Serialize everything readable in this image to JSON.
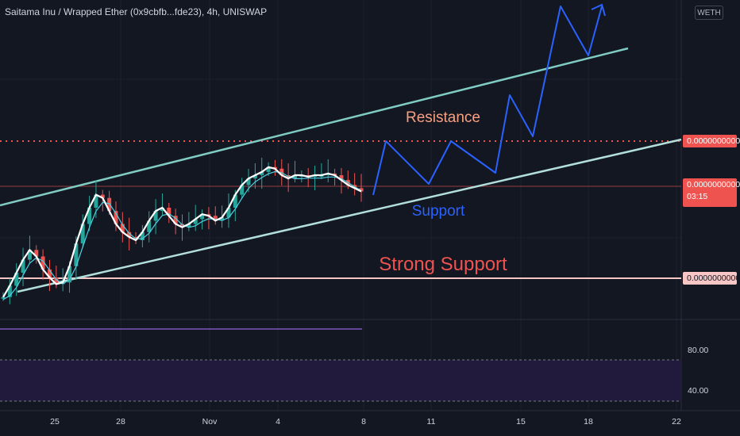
{
  "header": {
    "title": "Saitama Inu / Wrapped Ether (0x9cbfb...fde23), 4h, UNISWAP",
    "quote_badge": "WETH"
  },
  "price_axis": {
    "resistance_label": "0.0000000000",
    "current_label": "0.0000000000",
    "countdown": "03:15",
    "strong_support_label": "0.0000000000"
  },
  "rsi_axis": {
    "upper": "80.00",
    "lower": "40.00"
  },
  "time_axis": {
    "ticks": [
      "25",
      "28",
      "Nov",
      "4",
      "8",
      "11",
      "15",
      "18",
      "22"
    ]
  },
  "annotations": {
    "resistance": "Resistance",
    "support": "Support",
    "strong_support": "Strong Support"
  },
  "colors": {
    "background": "#131722",
    "up_candle": "#26a69a",
    "down_candle": "#ef5350",
    "channel_upper": "#80cbc4",
    "channel_lower": "#b2dfdb",
    "resistance_line": "#ef5350",
    "strong_support_line": "#f7c6c5",
    "projection": "#2962ff",
    "ma_fast": "#ffffff",
    "ma_slow": "#4dd0e1",
    "rsi_band": "#2a1f4d",
    "rsi_line": "#7e57c2"
  },
  "chart_data": {
    "type": "candlestick",
    "symbol": "Saitama Inu / Wrapped Ether",
    "timeframe": "4h",
    "exchange": "UNISWAP",
    "x_tick_labels": [
      "25",
      "28",
      "Nov",
      "4",
      "8",
      "11",
      "15",
      "18",
      "22"
    ],
    "y_price_labels": [
      "0.0000000000",
      "0.0000000000",
      "0.0000000000"
    ],
    "price_series_normalized_0_to_1": [
      0.05,
      0.12,
      0.2,
      0.28,
      0.34,
      0.3,
      0.22,
      0.17,
      0.13,
      0.14,
      0.24,
      0.38,
      0.5,
      0.6,
      0.68,
      0.66,
      0.58,
      0.5,
      0.45,
      0.42,
      0.4,
      0.45,
      0.52,
      0.58,
      0.6,
      0.55,
      0.5,
      0.48,
      0.5,
      0.53,
      0.56,
      0.55,
      0.52,
      0.54,
      0.6,
      0.68,
      0.74,
      0.78,
      0.8,
      0.82,
      0.85,
      0.84,
      0.8,
      0.78,
      0.8,
      0.8,
      0.79,
      0.8,
      0.8,
      0.81,
      0.8,
      0.77,
      0.74,
      0.72,
      0.7
    ],
    "rsi": {
      "upper_level": 80,
      "lower_level": 40,
      "range": [
        20,
        100
      ]
    },
    "grid": true
  }
}
